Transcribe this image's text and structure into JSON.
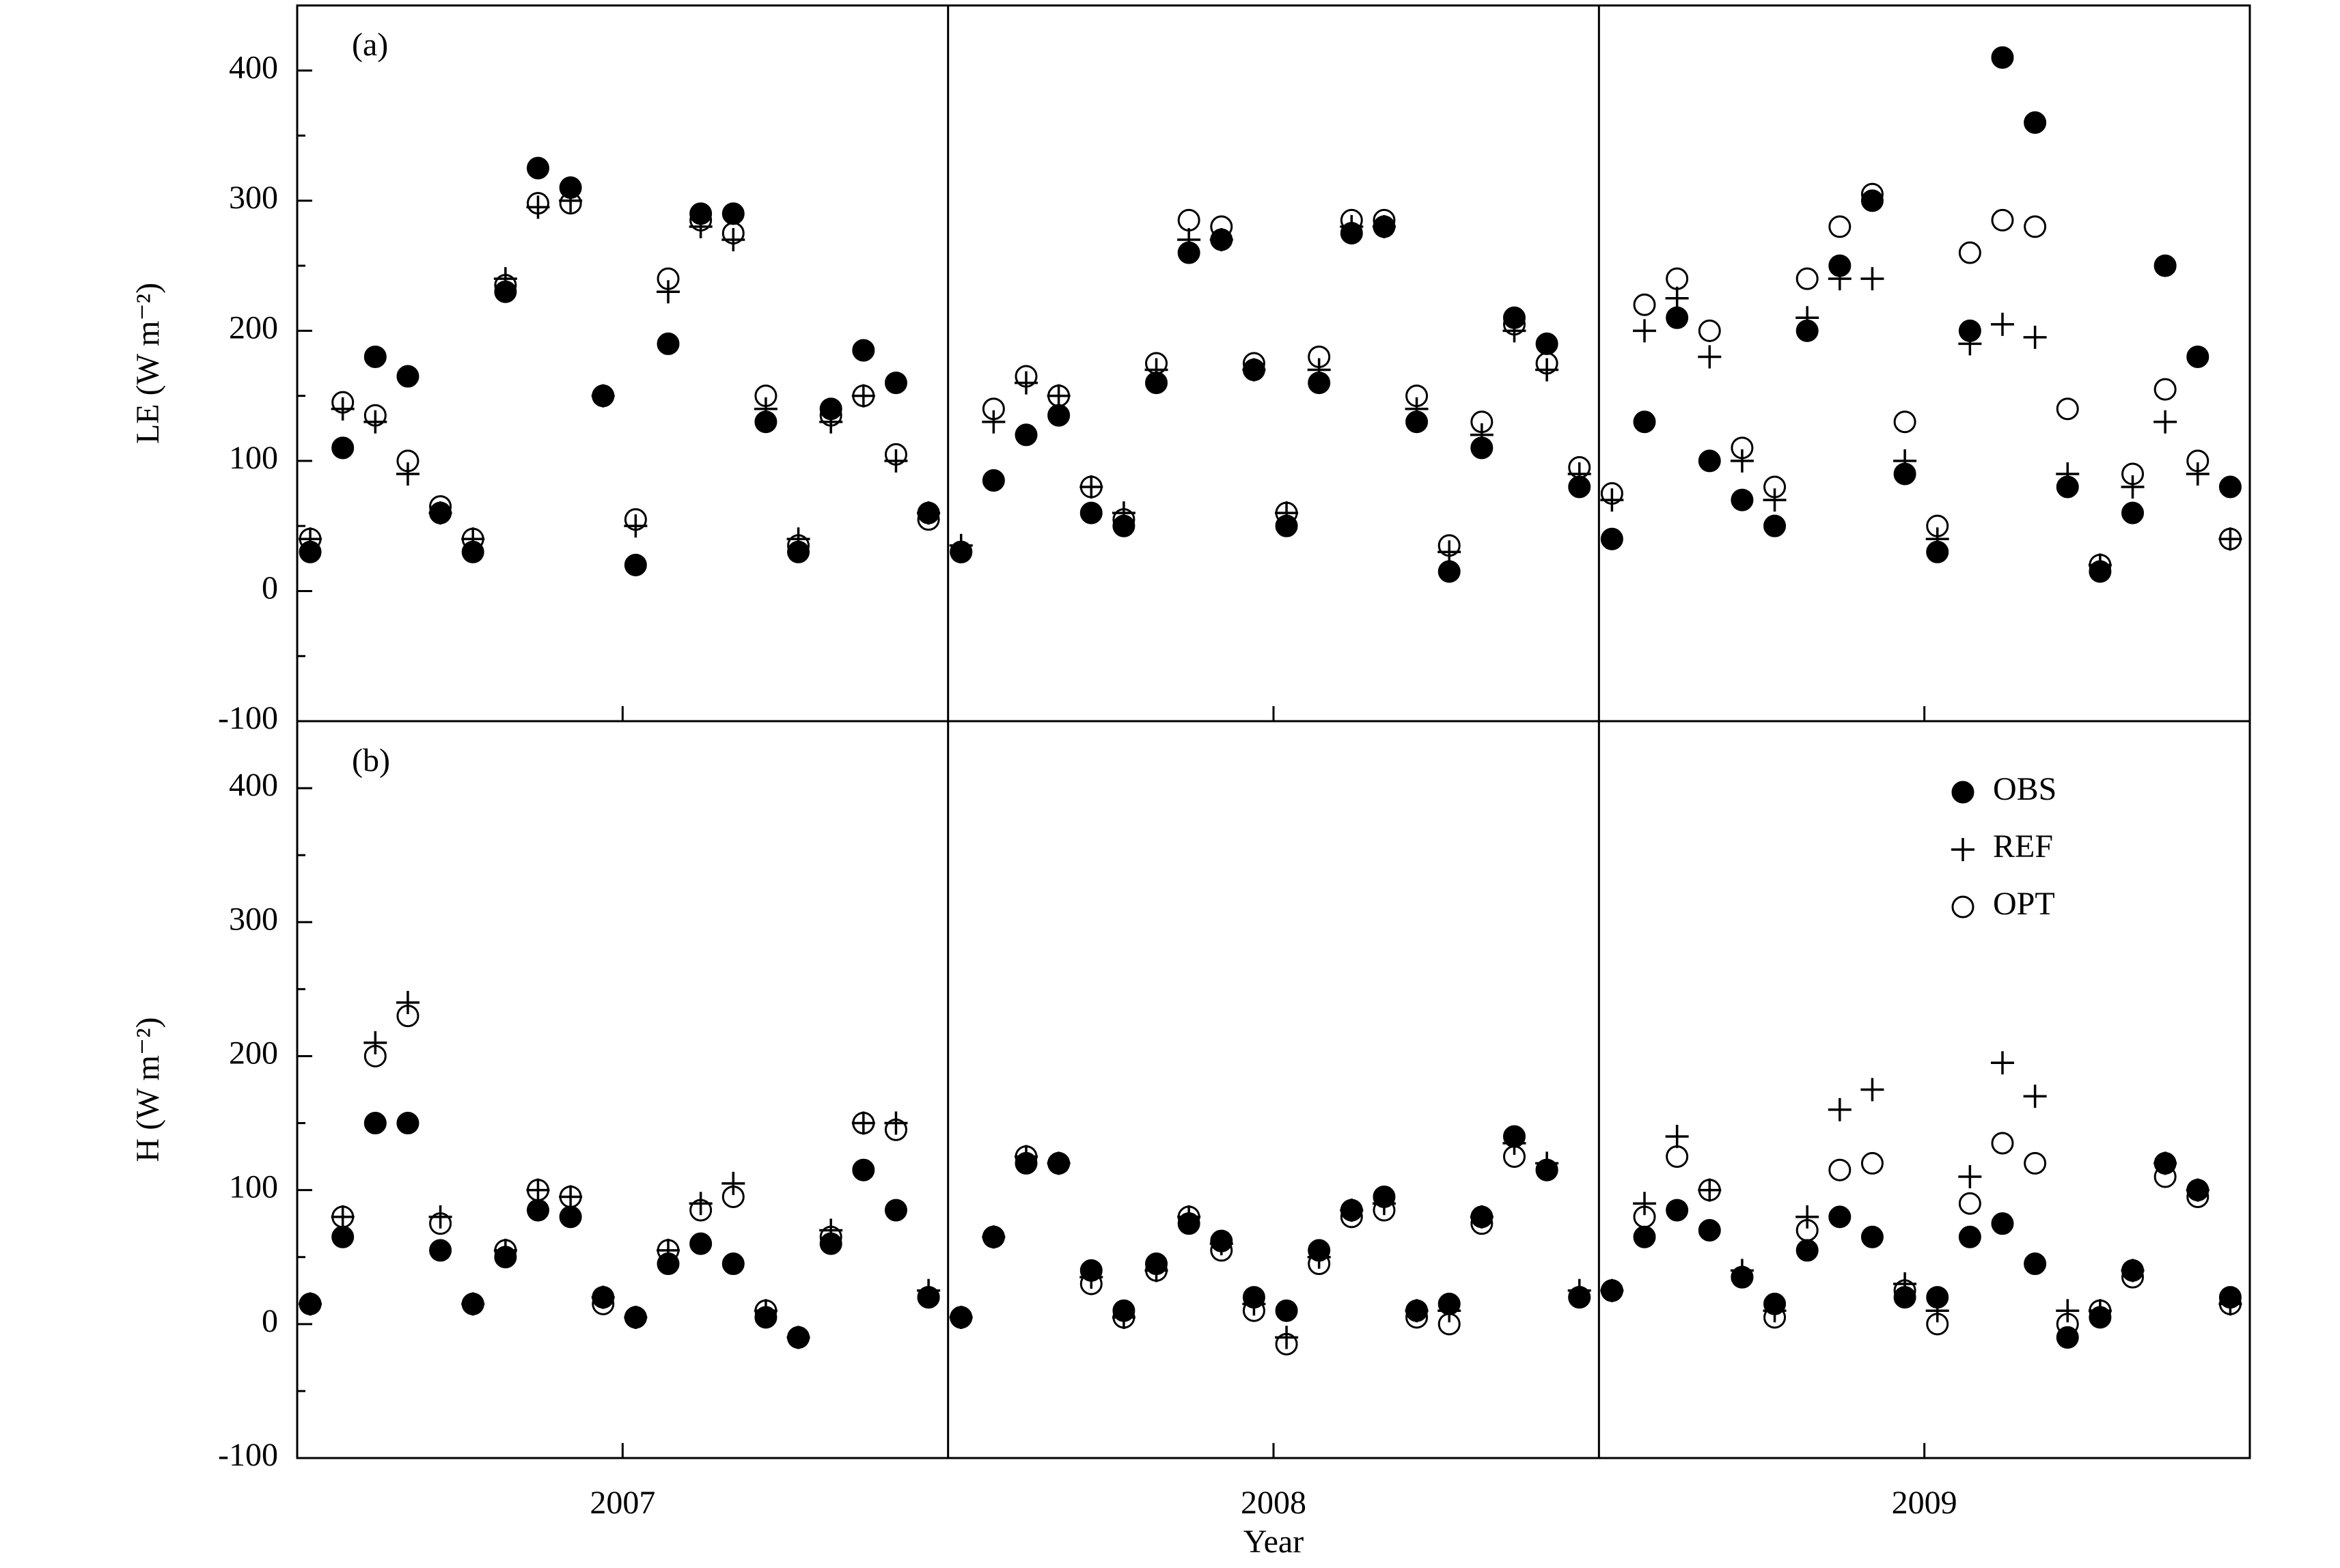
{
  "chart_data": [
    {
      "type": "scatter",
      "panel_label": "(a)",
      "ylabel": "LE (W m⁻²)",
      "xlim": [
        2006.5,
        2009.5
      ],
      "xticks": [
        2007,
        2008,
        2009
      ],
      "show_xtick_labels": false,
      "vlines": [
        2007.5,
        2008.5
      ],
      "ylim": [
        -100,
        450
      ],
      "yticks": [
        -100,
        0,
        100,
        200,
        300,
        400
      ],
      "yminorticks": [
        -50,
        50,
        150,
        250,
        350
      ],
      "x": [
        2006.52,
        2006.57,
        2006.62,
        2006.67,
        2006.72,
        2006.77,
        2006.82,
        2006.87,
        2006.92,
        2006.97,
        2007.02,
        2007.07,
        2007.12,
        2007.17,
        2007.22,
        2007.27,
        2007.32,
        2007.37,
        2007.42,
        2007.47,
        2007.52,
        2007.57,
        2007.62,
        2007.67,
        2007.72,
        2007.77,
        2007.82,
        2007.87,
        2007.92,
        2007.97,
        2008.02,
        2008.07,
        2008.12,
        2008.17,
        2008.22,
        2008.27,
        2008.32,
        2008.37,
        2008.42,
        2008.47,
        2008.52,
        2008.57,
        2008.62,
        2008.67,
        2008.72,
        2008.77,
        2008.82,
        2008.87,
        2008.92,
        2008.97,
        2009.02,
        2009.07,
        2009.12,
        2009.17,
        2009.22,
        2009.27,
        2009.32,
        2009.37,
        2009.42,
        2009.47
      ],
      "series": [
        {
          "name": "OBS",
          "marker": "filled-circle",
          "color": "#000000",
          "values": [
            30,
            110,
            180,
            165,
            60,
            30,
            230,
            325,
            310,
            150,
            20,
            190,
            290,
            290,
            130,
            30,
            140,
            185,
            160,
            60,
            30,
            85,
            120,
            135,
            60,
            50,
            160,
            260,
            270,
            170,
            50,
            160,
            275,
            280,
            130,
            15,
            110,
            210,
            190,
            80,
            40,
            130,
            210,
            100,
            70,
            50,
            200,
            250,
            300,
            90,
            30,
            200,
            410,
            360,
            80,
            15,
            60,
            250,
            180,
            80
          ]
        },
        {
          "name": "REF",
          "marker": "plus",
          "color": "#000000",
          "values": [
            40,
            140,
            130,
            90,
            60,
            40,
            240,
            295,
            300,
            150,
            50,
            230,
            280,
            270,
            140,
            40,
            130,
            150,
            100,
            60,
            35,
            130,
            160,
            150,
            80,
            60,
            170,
            270,
            270,
            170,
            60,
            170,
            280,
            280,
            140,
            30,
            120,
            200,
            170,
            90,
            70,
            200,
            225,
            180,
            100,
            70,
            210,
            240,
            240,
            100,
            40,
            190,
            205,
            195,
            90,
            20,
            80,
            130,
            90,
            40
          ]
        },
        {
          "name": "OPT",
          "marker": "open-circle",
          "color": "#000000",
          "values": [
            40,
            145,
            135,
            100,
            65,
            40,
            235,
            298,
            298,
            150,
            55,
            240,
            285,
            275,
            150,
            35,
            135,
            150,
            105,
            55,
            30,
            140,
            165,
            150,
            80,
            55,
            175,
            285,
            280,
            175,
            60,
            180,
            285,
            285,
            150,
            35,
            130,
            205,
            175,
            95,
            75,
            220,
            240,
            200,
            110,
            80,
            240,
            280,
            305,
            130,
            50,
            260,
            285,
            280,
            140,
            20,
            90,
            155,
            100,
            40
          ]
        }
      ]
    },
    {
      "type": "scatter",
      "panel_label": "(b)",
      "ylabel": "H (W m⁻²)",
      "xlabel": "Year",
      "xlim": [
        2006.5,
        2009.5
      ],
      "xticks": [
        2007,
        2008,
        2009
      ],
      "show_xtick_labels": true,
      "vlines": [
        2007.5,
        2008.5
      ],
      "ylim": [
        -100,
        450
      ],
      "yticks": [
        -100,
        0,
        100,
        200,
        300,
        400
      ],
      "yminorticks": [
        -50,
        50,
        150,
        250,
        350
      ],
      "legend": "upper right",
      "x": [
        2006.52,
        2006.57,
        2006.62,
        2006.67,
        2006.72,
        2006.77,
        2006.82,
        2006.87,
        2006.92,
        2006.97,
        2007.02,
        2007.07,
        2007.12,
        2007.17,
        2007.22,
        2007.27,
        2007.32,
        2007.37,
        2007.42,
        2007.47,
        2007.52,
        2007.57,
        2007.62,
        2007.67,
        2007.72,
        2007.77,
        2007.82,
        2007.87,
        2007.92,
        2007.97,
        2008.02,
        2008.07,
        2008.12,
        2008.17,
        2008.22,
        2008.27,
        2008.32,
        2008.37,
        2008.42,
        2008.47,
        2008.52,
        2008.57,
        2008.62,
        2008.67,
        2008.72,
        2008.77,
        2008.82,
        2008.87,
        2008.92,
        2008.97,
        2009.02,
        2009.07,
        2009.12,
        2009.17,
        2009.22,
        2009.27,
        2009.32,
        2009.37,
        2009.42,
        2009.47
      ],
      "series": [
        {
          "name": "OBS",
          "marker": "filled-circle",
          "color": "#000000",
          "values": [
            15,
            65,
            150,
            150,
            55,
            15,
            50,
            85,
            80,
            20,
            5,
            45,
            60,
            45,
            5,
            -10,
            60,
            115,
            85,
            20,
            5,
            65,
            120,
            120,
            40,
            10,
            45,
            75,
            62,
            20,
            10,
            55,
            85,
            95,
            10,
            15,
            80,
            140,
            115,
            20,
            25,
            65,
            85,
            70,
            35,
            15,
            55,
            80,
            65,
            20,
            20,
            65,
            75,
            45,
            -10,
            5,
            40,
            120,
            100,
            20
          ]
        },
        {
          "name": "REF",
          "marker": "plus",
          "color": "#000000",
          "values": [
            15,
            80,
            210,
            240,
            80,
            15,
            55,
            100,
            95,
            20,
            5,
            55,
            90,
            105,
            10,
            -10,
            70,
            150,
            150,
            25,
            5,
            65,
            125,
            120,
            35,
            5,
            40,
            80,
            60,
            15,
            -10,
            50,
            85,
            90,
            10,
            10,
            80,
            135,
            120,
            25,
            25,
            90,
            140,
            100,
            40,
            10,
            80,
            160,
            175,
            30,
            10,
            110,
            195,
            170,
            10,
            10,
            40,
            120,
            100,
            15
          ]
        },
        {
          "name": "OPT",
          "marker": "open-circle",
          "color": "#000000",
          "values": [
            15,
            80,
            200,
            230,
            75,
            15,
            55,
            100,
            95,
            15,
            5,
            55,
            85,
            95,
            10,
            -10,
            65,
            150,
            145,
            20,
            5,
            65,
            125,
            120,
            30,
            5,
            40,
            80,
            55,
            10,
            -15,
            45,
            80,
            85,
            5,
            0,
            75,
            125,
            115,
            20,
            25,
            80,
            125,
            100,
            35,
            5,
            70,
            115,
            120,
            25,
            0,
            90,
            135,
            120,
            0,
            10,
            35,
            110,
            95,
            15
          ]
        }
      ]
    }
  ]
}
